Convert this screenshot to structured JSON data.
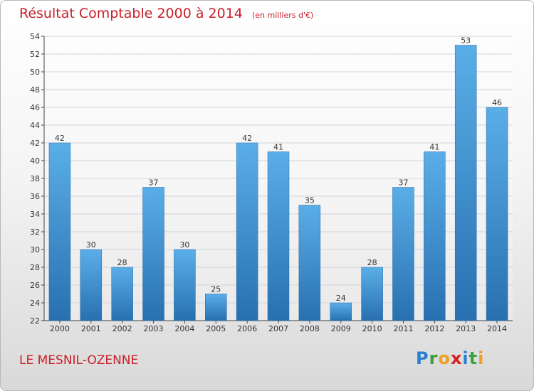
{
  "title": "Résultat Comptable 2000 à 2014",
  "subtitle": "(en milliers d'€)",
  "location": "LE MESNIL-OZENNE",
  "logo": {
    "text": "Proxiti",
    "letters": [
      "P",
      "r",
      "o",
      "x",
      "i",
      "t",
      "i"
    ],
    "colors": [
      "#2a7fd0",
      "#3aa040",
      "#f0a020",
      "#d82020",
      "#2a7fd0",
      "#3aa040",
      "#f0a020"
    ]
  },
  "colors": {
    "title": "#c8202a",
    "bar_top": "#5aaee8",
    "bar_bottom": "#2870b0",
    "axis": "#444444",
    "grid": "#cfd4dc"
  },
  "chart_data": {
    "type": "bar",
    "categories": [
      "2000",
      "2001",
      "2002",
      "2003",
      "2004",
      "2005",
      "2006",
      "2007",
      "2008",
      "2009",
      "2010",
      "2011",
      "2012",
      "2013",
      "2014"
    ],
    "values": [
      42,
      30,
      28,
      37,
      30,
      25,
      42,
      41,
      35,
      24,
      28,
      37,
      41,
      53,
      46
    ],
    "ylim": [
      22,
      54
    ],
    "yticks": [
      22,
      24,
      26,
      28,
      30,
      32,
      34,
      36,
      38,
      40,
      42,
      44,
      46,
      48,
      50,
      52,
      54
    ],
    "grid": true,
    "data_labels": true
  }
}
